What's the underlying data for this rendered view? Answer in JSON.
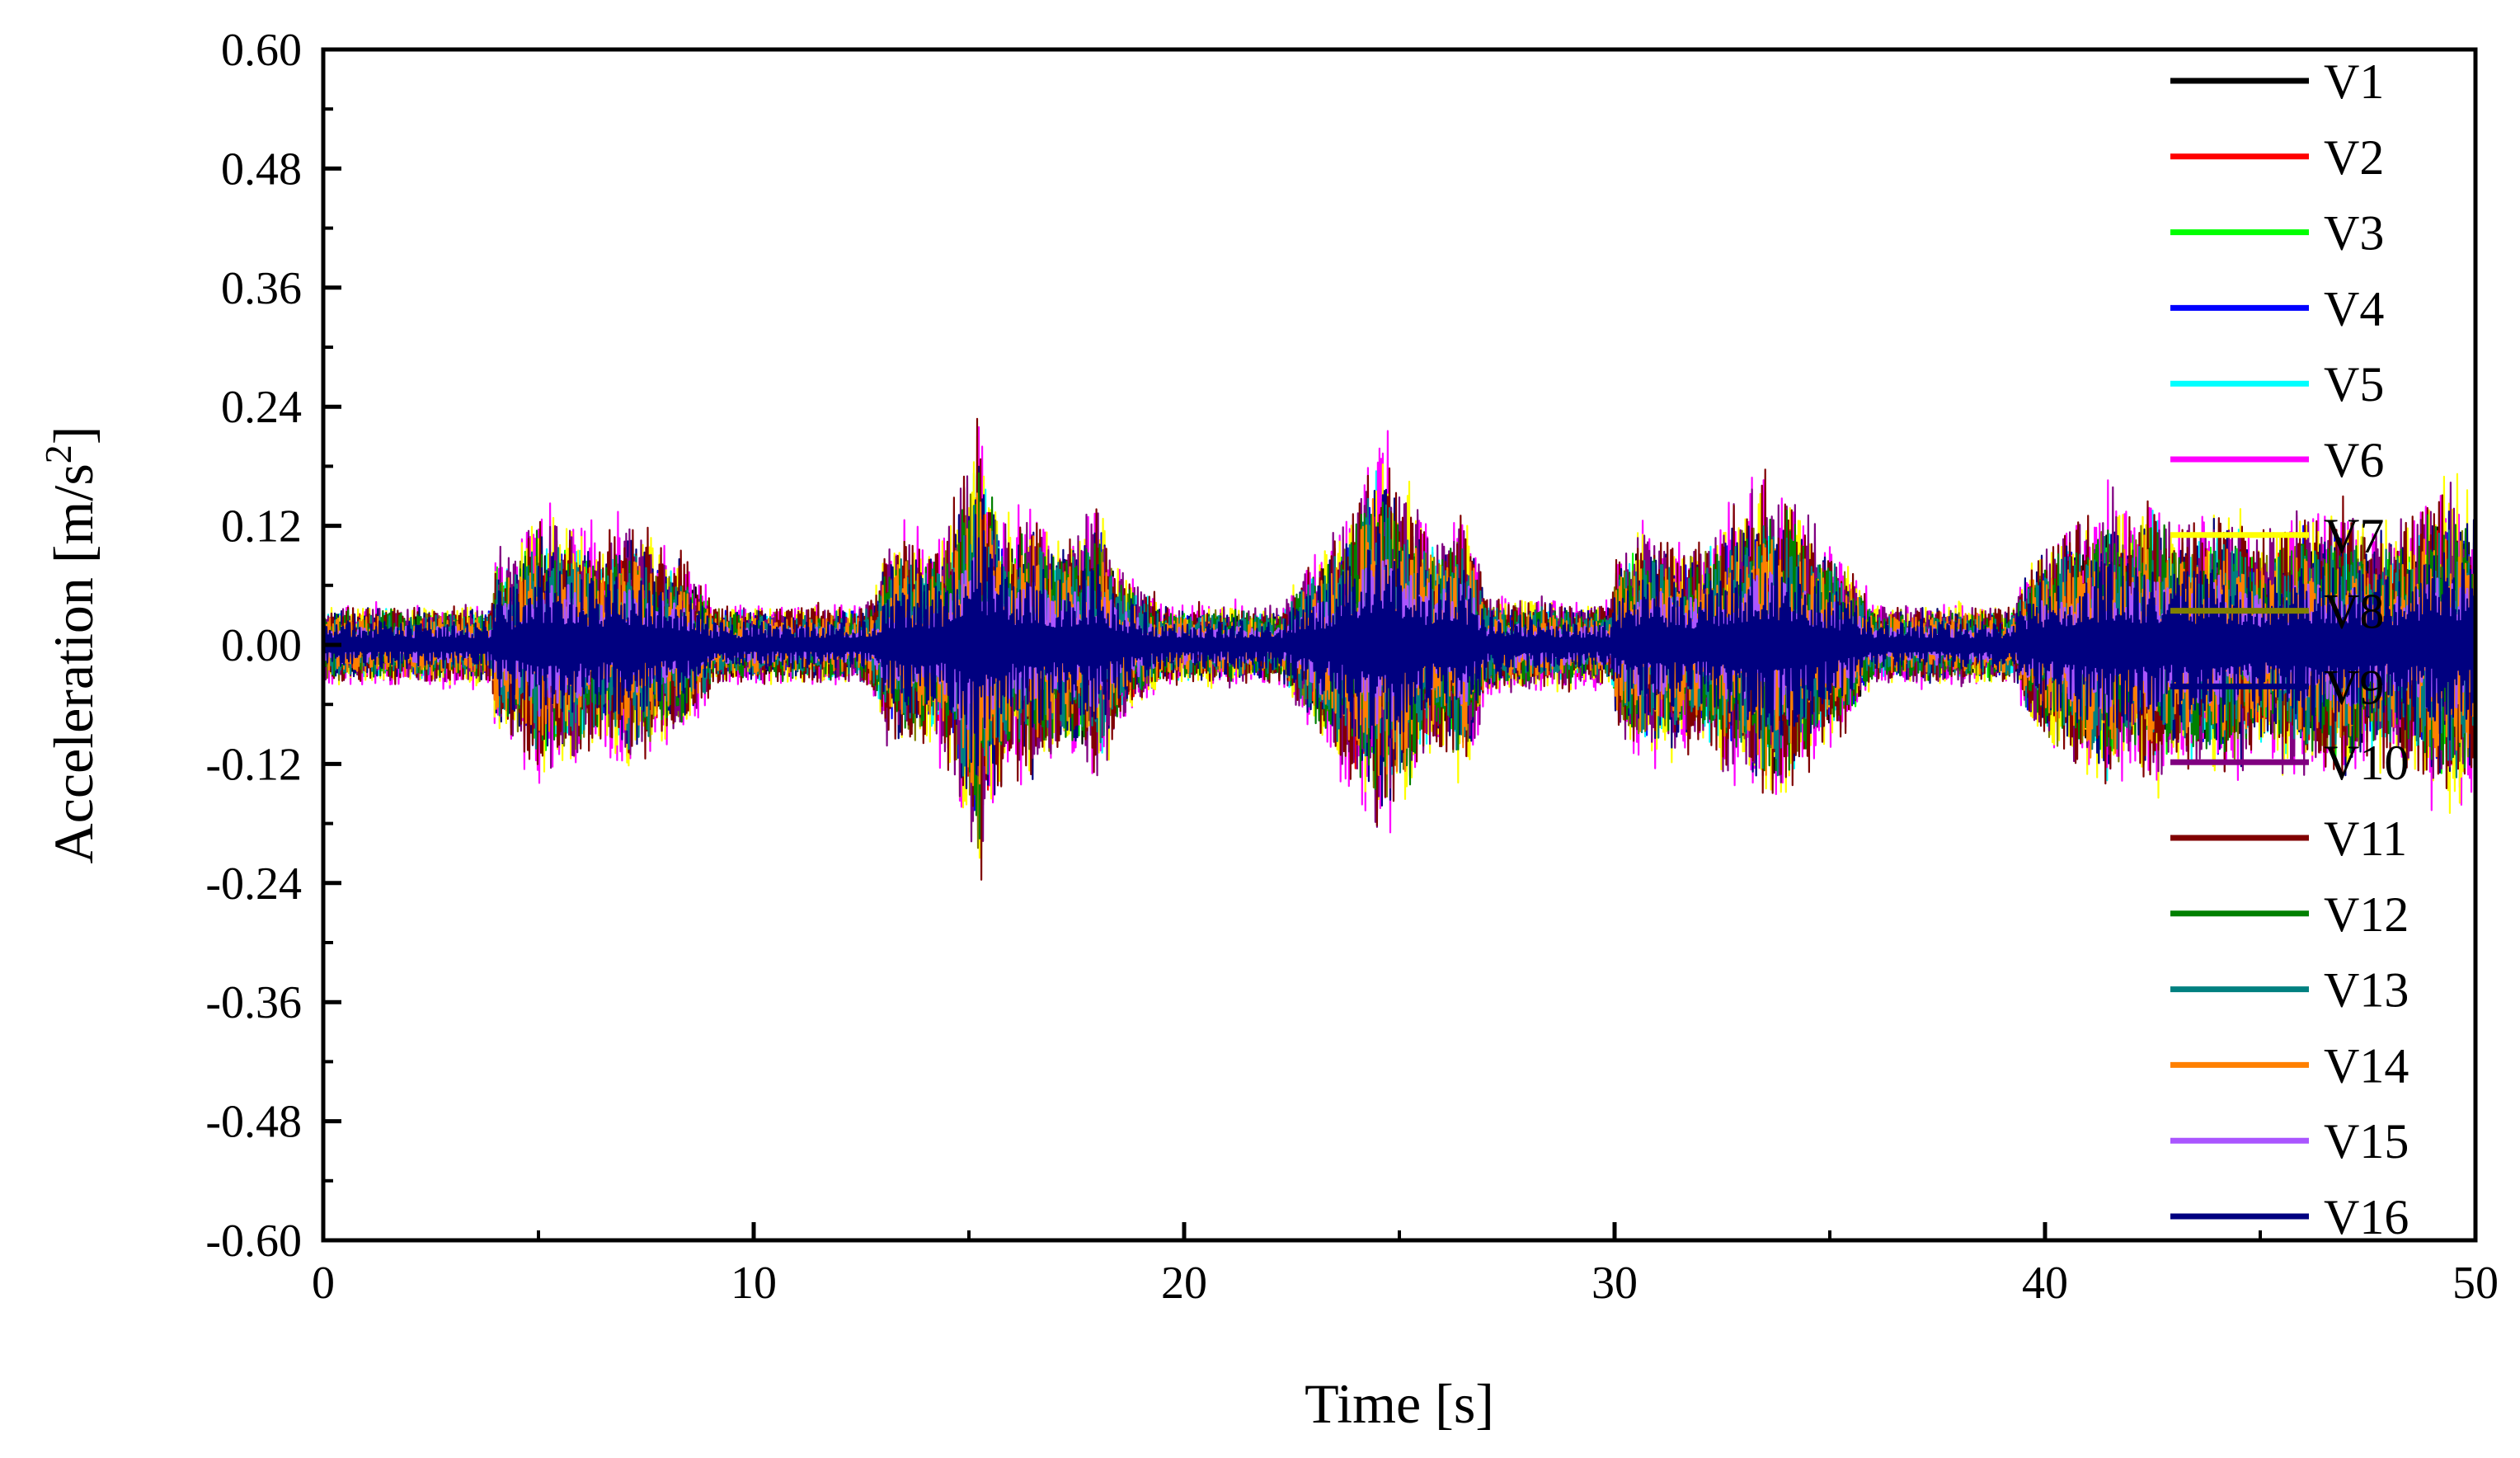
{
  "chart_data": {
    "type": "line",
    "title": "",
    "xlabel": "Time [s]",
    "ylabel": "Acceleration [m/s",
    "ylabel_sup": "2",
    "ylabel_close": "]",
    "xlim": [
      0,
      50
    ],
    "ylim": [
      -0.6,
      0.6
    ],
    "x_ticks": [
      "0",
      "10",
      "20",
      "30",
      "40",
      "50"
    ],
    "x_tick_values": [
      0,
      10,
      20,
      30,
      40,
      50
    ],
    "y_ticks": [
      "0.60",
      "0.48",
      "0.36",
      "0.24",
      "0.12",
      "0.00",
      "-0.12",
      "-0.24",
      "-0.36",
      "-0.48",
      "-0.60"
    ],
    "y_tick_values": [
      0.6,
      0.48,
      0.36,
      0.24,
      0.12,
      0.0,
      -0.12,
      -0.24,
      -0.36,
      -0.48,
      -0.6
    ],
    "grid": false,
    "legend_position": "top-right, inside",
    "envelope_x": [
      0,
      3.9,
      4,
      4.5,
      5,
      5.5,
      6,
      6.5,
      7,
      7.5,
      8,
      8.5,
      8.9,
      9,
      12.5,
      12.9,
      13,
      13.5,
      14,
      14.5,
      15,
      15.2,
      15.5,
      16,
      16.5,
      17,
      17.5,
      18,
      18.5,
      19,
      19.3,
      19.5,
      22.3,
      22.5,
      23,
      23.5,
      24,
      24.5,
      25,
      25.5,
      26,
      26.5,
      26.9,
      27,
      29.9,
      30,
      30.5,
      31,
      31.5,
      32,
      32.5,
      33,
      33.5,
      34,
      34.5,
      35,
      35.5,
      35.9,
      36,
      39.3,
      39.5,
      40,
      40.5,
      41,
      41.5,
      42,
      42.5,
      43,
      43.5,
      44,
      44.5,
      45,
      45.5,
      46,
      46.5,
      47,
      47.5,
      48,
      48.5,
      49,
      49.5,
      50
    ],
    "envelope_peak": [
      0.04,
      0.04,
      0.09,
      0.1,
      0.14,
      0.13,
      0.12,
      0.1,
      0.13,
      0.11,
      0.1,
      0.08,
      0.06,
      0.04,
      0.04,
      0.06,
      0.09,
      0.11,
      0.1,
      0.12,
      0.2,
      0.24,
      0.17,
      0.12,
      0.14,
      0.11,
      0.12,
      0.14,
      0.08,
      0.06,
      0.05,
      0.04,
      0.04,
      0.06,
      0.09,
      0.11,
      0.16,
      0.2,
      0.18,
      0.13,
      0.11,
      0.14,
      0.08,
      0.05,
      0.04,
      0.08,
      0.12,
      0.11,
      0.11,
      0.1,
      0.12,
      0.14,
      0.17,
      0.15,
      0.12,
      0.1,
      0.08,
      0.05,
      0.04,
      0.04,
      0.07,
      0.1,
      0.12,
      0.14,
      0.15,
      0.13,
      0.15,
      0.12,
      0.13,
      0.14,
      0.13,
      0.11,
      0.12,
      0.14,
      0.13,
      0.14,
      0.12,
      0.12,
      0.13,
      0.15,
      0.16,
      0.15
    ],
    "series": [
      {
        "name": "V1",
        "color": "#000000",
        "amp": 0.7
      },
      {
        "name": "V2",
        "color": "#ff0000",
        "amp": 0.7
      },
      {
        "name": "V3",
        "color": "#00ff00",
        "amp": 0.75
      },
      {
        "name": "V4",
        "color": "#0000ff",
        "amp": 0.75
      },
      {
        "name": "V5",
        "color": "#00ffff",
        "amp": 0.8
      },
      {
        "name": "V6",
        "color": "#ff00ff",
        "amp": 1.0
      },
      {
        "name": "V7",
        "color": "#ffff00",
        "amp": 0.95
      },
      {
        "name": "V8",
        "color": "#808000",
        "amp": 0.8
      },
      {
        "name": "V9",
        "color": "#000080",
        "amp": 0.85
      },
      {
        "name": "V10",
        "color": "#800080",
        "amp": 0.95
      },
      {
        "name": "V11",
        "color": "#800000",
        "amp": 0.95
      },
      {
        "name": "V12",
        "color": "#008000",
        "amp": 0.8
      },
      {
        "name": "V13",
        "color": "#008080",
        "amp": 0.75
      },
      {
        "name": "V14",
        "color": "#ff8000",
        "amp": 0.7
      },
      {
        "name": "V15",
        "color": "#aa55ff",
        "amp": 0.45
      },
      {
        "name": "V16",
        "color": "#000080",
        "amp": 0.6
      }
    ]
  }
}
